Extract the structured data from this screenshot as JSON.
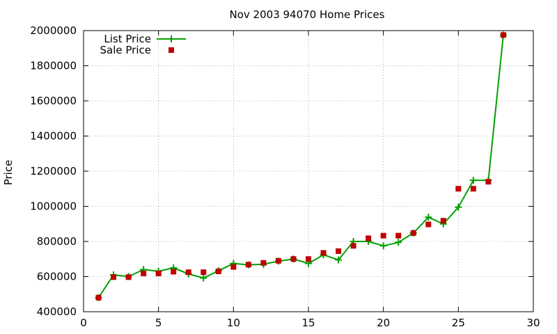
{
  "chart_data": {
    "type": "line",
    "title": "Nov 2003 94070 Home Prices",
    "xlabel": "",
    "ylabel": "Price",
    "xlim": [
      0,
      30
    ],
    "ylim": [
      400000,
      2000000
    ],
    "xticks": [
      0,
      5,
      10,
      15,
      20,
      25,
      30
    ],
    "yticks": [
      400000,
      600000,
      800000,
      1000000,
      1200000,
      1400000,
      1600000,
      1800000,
      2000000
    ],
    "grid": true,
    "legend_position": "top-left",
    "colors": {
      "list": "#00a000",
      "sale": "#c00000"
    },
    "series": [
      {
        "name": "List Price",
        "style": "line-points",
        "x": [
          1,
          2,
          3,
          4,
          5,
          6,
          7,
          8,
          9,
          10,
          11,
          12,
          13,
          14,
          15,
          16,
          17,
          18,
          19,
          20,
          21,
          22,
          23,
          24,
          25,
          26,
          27,
          28
        ],
        "y": [
          480000,
          610000,
          600000,
          640000,
          630000,
          650000,
          615000,
          592000,
          633000,
          675000,
          667000,
          670000,
          688000,
          700000,
          675000,
          724000,
          695000,
          800000,
          800000,
          775000,
          795000,
          848000,
          938000,
          900000,
          995000,
          1148000,
          1148000,
          1975000
        ]
      },
      {
        "name": "Sale Price",
        "style": "points",
        "x": [
          1,
          2,
          3,
          4,
          5,
          6,
          7,
          8,
          9,
          10,
          11,
          12,
          13,
          14,
          15,
          16,
          17,
          18,
          19,
          20,
          21,
          22,
          23,
          24,
          25,
          26,
          27,
          28
        ],
        "y": [
          480000,
          597000,
          597000,
          618000,
          618000,
          628000,
          625000,
          625000,
          630000,
          655000,
          668000,
          678000,
          690000,
          700000,
          700000,
          735000,
          745000,
          775000,
          818000,
          833000,
          833000,
          848000,
          897000,
          918000,
          1100000,
          1100000,
          1140000,
          1975000
        ]
      }
    ]
  }
}
